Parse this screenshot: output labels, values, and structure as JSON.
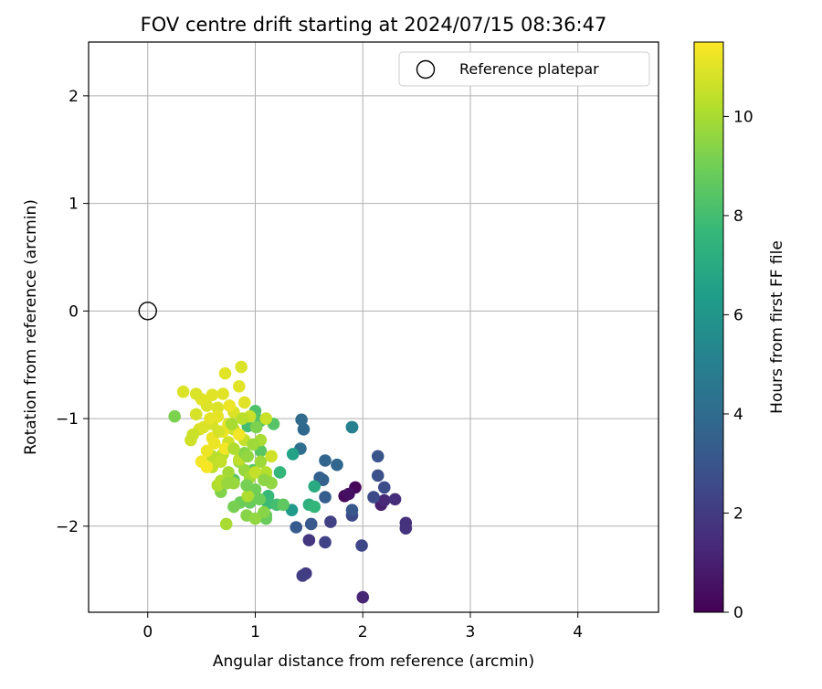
{
  "chart_data": {
    "type": "scatter",
    "title": "FOV centre drift starting at 2024/07/15 08:36:47",
    "xlabel": "Angular distance from reference (arcmin)",
    "ylabel": "Rotation from reference (arcmin)",
    "xlim": [
      -0.55,
      4.75
    ],
    "ylim": [
      -2.8,
      2.5
    ],
    "xticks": [
      "0",
      "1",
      "2",
      "3",
      "4"
    ],
    "yticks": [
      "−2",
      "−1",
      "0",
      "1",
      "2"
    ],
    "grid": true,
    "legend": {
      "position": "top-right",
      "label": "Reference platepar"
    },
    "colorbar": {
      "label": "Hours from first FF file",
      "min": 0,
      "max": 11.5,
      "ticks": [
        "0",
        "2",
        "4",
        "6",
        "8",
        "10"
      ],
      "colormap": "viridis"
    },
    "reference_point": {
      "x": 0,
      "y": 0
    },
    "points": [
      [
        1.93,
        -1.64,
        0.2
      ],
      [
        1.83,
        -1.72,
        0.3
      ],
      [
        1.87,
        -1.7,
        0.5
      ],
      [
        2.0,
        -2.66,
        1.2
      ],
      [
        2.17,
        -1.8,
        1.0
      ],
      [
        2.2,
        -1.76,
        1.3
      ],
      [
        2.3,
        -1.75,
        1.5
      ],
      [
        2.4,
        -1.97,
        1.6
      ],
      [
        2.4,
        -2.02,
        1.7
      ],
      [
        1.5,
        -2.13,
        1.8
      ],
      [
        1.47,
        -2.44,
        2.0
      ],
      [
        1.44,
        -2.46,
        2.1
      ],
      [
        1.7,
        -1.96,
        2.2
      ],
      [
        1.65,
        -2.15,
        2.3
      ],
      [
        1.99,
        -2.18,
        2.4
      ],
      [
        1.9,
        -1.9,
        2.5
      ],
      [
        2.1,
        -1.73,
        2.6
      ],
      [
        2.2,
        -1.64,
        2.7
      ],
      [
        2.14,
        -1.53,
        2.8
      ],
      [
        2.14,
        -1.35,
        3.0
      ],
      [
        1.9,
        -1.85,
        3.1
      ],
      [
        1.52,
        -1.98,
        3.2
      ],
      [
        1.38,
        -2.01,
        3.3
      ],
      [
        1.65,
        -1.73,
        3.4
      ],
      [
        1.6,
        -1.55,
        3.5
      ],
      [
        1.63,
        -1.57,
        3.6
      ],
      [
        1.65,
        -1.39,
        3.7
      ],
      [
        1.76,
        -1.43,
        3.8
      ],
      [
        1.45,
        -1.1,
        3.9
      ],
      [
        1.43,
        -1.01,
        4.0
      ],
      [
        1.42,
        -1.28,
        4.2
      ],
      [
        1.9,
        -1.08,
        4.6
      ],
      [
        1.9,
        -1.08,
        5.0
      ],
      [
        1.34,
        -1.85,
        6.2
      ],
      [
        1.35,
        -1.33,
        6.6
      ],
      [
        1.55,
        -1.63,
        7.0
      ],
      [
        1.5,
        -1.8,
        7.3
      ],
      [
        1.55,
        -1.82,
        7.5
      ],
      [
        1.23,
        -1.5,
        7.6
      ],
      [
        1.12,
        -1.72,
        7.7
      ],
      [
        1.12,
        -1.79,
        7.8
      ],
      [
        1.2,
        -1.8,
        8.0
      ],
      [
        0.93,
        -1.07,
        8.0
      ],
      [
        1.0,
        -0.93,
        8.2
      ],
      [
        1.05,
        -1.02,
        8.3
      ],
      [
        1.17,
        -1.05,
        8.4
      ],
      [
        0.8,
        -1.57,
        8.4
      ],
      [
        0.98,
        -1.48,
        8.5
      ],
      [
        1.05,
        -1.3,
        8.5
      ],
      [
        1.26,
        -1.8,
        8.6
      ],
      [
        1.1,
        -1.9,
        8.7
      ],
      [
        1.1,
        -1.93,
        8.8
      ],
      [
        0.95,
        -1.78,
        8.8
      ],
      [
        0.86,
        -1.78,
        8.9
      ],
      [
        1.0,
        -1.66,
        9.0
      ],
      [
        0.8,
        -1.82,
        9.1
      ],
      [
        0.25,
        -0.98,
        9.2
      ],
      [
        0.68,
        -1.68,
        9.3
      ],
      [
        0.92,
        -1.9,
        9.4
      ],
      [
        1.08,
        -1.87,
        9.4
      ],
      [
        1.1,
        -1.55,
        9.5
      ],
      [
        1.15,
        -1.6,
        9.6
      ],
      [
        1.0,
        -1.93,
        9.6
      ],
      [
        0.8,
        -1.6,
        9.7
      ],
      [
        0.9,
        -1.48,
        9.7
      ],
      [
        0.85,
        -1.4,
        9.8
      ],
      [
        1.05,
        -1.4,
        9.8
      ],
      [
        0.95,
        -1.55,
        9.9
      ],
      [
        0.75,
        -1.5,
        9.9
      ],
      [
        1.05,
        -1.2,
        10.0
      ],
      [
        0.73,
        -1.98,
        10.0
      ],
      [
        0.93,
        -1.72,
        10.1
      ],
      [
        0.65,
        -1.62,
        10.1
      ],
      [
        0.68,
        -1.58,
        10.2
      ],
      [
        1.1,
        -1.5,
        10.2
      ],
      [
        0.6,
        -1.35,
        10.3
      ],
      [
        0.7,
        -1.33,
        10.3
      ],
      [
        0.6,
        -1.45,
        10.4
      ],
      [
        0.85,
        -1.38,
        10.4
      ],
      [
        1.0,
        -1.5,
        10.5
      ],
      [
        0.9,
        -1.2,
        10.5
      ],
      [
        0.8,
        -1.1,
        10.6
      ],
      [
        0.95,
        -0.98,
        10.6
      ],
      [
        1.1,
        -1.0,
        10.6
      ],
      [
        1.15,
        -1.35,
        10.7
      ],
      [
        0.75,
        -1.22,
        10.7
      ],
      [
        0.6,
        -1.05,
        10.8
      ],
      [
        0.48,
        -1.1,
        10.8
      ],
      [
        0.45,
        -0.96,
        10.8
      ],
      [
        0.55,
        -0.88,
        10.9
      ],
      [
        0.65,
        -0.9,
        10.9
      ],
      [
        0.8,
        -0.94,
        10.9
      ],
      [
        0.9,
        -0.85,
        11.0
      ],
      [
        0.85,
        -0.7,
        11.0
      ],
      [
        0.7,
        -0.77,
        11.0
      ],
      [
        0.6,
        -0.78,
        11.0
      ],
      [
        0.5,
        -0.82,
        11.0
      ],
      [
        0.45,
        -0.77,
        10.9
      ],
      [
        0.33,
        -0.75,
        10.9
      ],
      [
        0.65,
        -0.98,
        11.1
      ],
      [
        0.75,
        -1.05,
        11.1
      ],
      [
        0.7,
        -1.12,
        11.2
      ],
      [
        0.6,
        -1.18,
        11.2
      ],
      [
        0.55,
        -1.3,
        11.2
      ],
      [
        0.5,
        -1.4,
        11.3
      ],
      [
        0.55,
        -1.45,
        11.4
      ],
      [
        0.72,
        -1.28,
        11.3
      ],
      [
        0.85,
        -1.15,
        11.3
      ],
      [
        0.62,
        -1.23,
        11.2
      ],
      [
        0.4,
        -1.2,
        10.7
      ],
      [
        0.42,
        -1.15,
        10.6
      ],
      [
        0.72,
        -0.58,
        11.0
      ],
      [
        0.87,
        -0.52,
        10.9
      ],
      [
        1.01,
        -1.08,
        9.2
      ],
      [
        0.98,
        -1.24,
        9.8
      ],
      [
        0.9,
        -1.32,
        9.4
      ],
      [
        0.78,
        -1.05,
        10.0
      ],
      [
        0.68,
        -1.4,
        10.5
      ],
      [
        0.8,
        -1.28,
        10.1
      ],
      [
        0.92,
        -1.62,
        9.1
      ],
      [
        1.04,
        -1.75,
        8.9
      ],
      [
        0.93,
        -1.35,
        9.6
      ],
      [
        0.88,
        -1.0,
        10.3
      ],
      [
        0.58,
        -1.0,
        11.1
      ],
      [
        0.52,
        -1.08,
        10.9
      ],
      [
        0.66,
        -1.12,
        10.8
      ],
      [
        0.76,
        -0.88,
        11.2
      ],
      [
        1.08,
        -1.57,
        9.5
      ],
      [
        0.74,
        -1.6,
        9.7
      ]
    ]
  }
}
